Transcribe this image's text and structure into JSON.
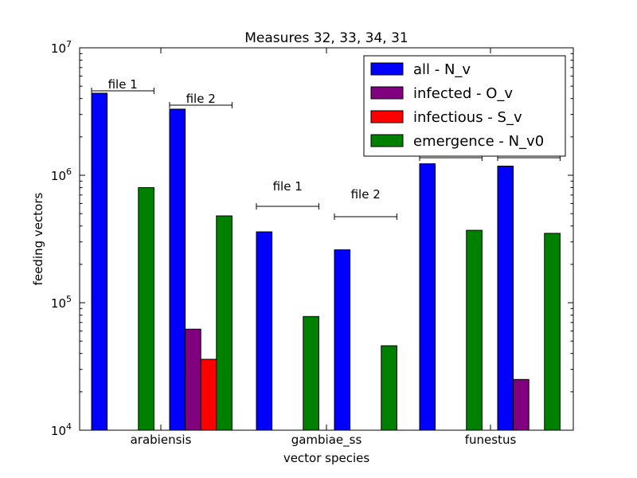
{
  "chart_data": {
    "type": "bar",
    "title": "Measures 32, 33, 34, 31",
    "xlabel": "vector species",
    "ylabel": "feeding vectors",
    "yscale": "log",
    "ylim": [
      10000,
      10000000
    ],
    "yticks": [
      {
        "base": "10",
        "exp": "4"
      },
      {
        "base": "10",
        "exp": "5"
      },
      {
        "base": "10",
        "exp": "6"
      },
      {
        "base": "10",
        "exp": "7"
      }
    ],
    "categories": [
      "arabiensis",
      "gambiae_ss",
      "funestus"
    ],
    "files": [
      "file 1",
      "file 2"
    ],
    "legend_position": "top-right",
    "series": [
      {
        "name": "all - N_v",
        "color": "#0000ff",
        "values": [
          [
            4400000,
            3300000
          ],
          [
            360000,
            260000
          ],
          [
            1230000,
            1180000
          ]
        ]
      },
      {
        "name": "infected - O_v",
        "color": "#800080",
        "values": [
          [
            null,
            62000
          ],
          [
            null,
            null
          ],
          [
            null,
            25000
          ]
        ]
      },
      {
        "name": "infectious - S_v",
        "color": "#ff0000",
        "values": [
          [
            null,
            36000
          ],
          [
            null,
            null
          ],
          [
            null,
            null
          ]
        ]
      },
      {
        "name": "emergence - N_v0",
        "color": "#008000",
        "values": [
          [
            800000,
            480000
          ],
          [
            78000,
            46000
          ],
          [
            370000,
            350000
          ]
        ]
      }
    ]
  }
}
